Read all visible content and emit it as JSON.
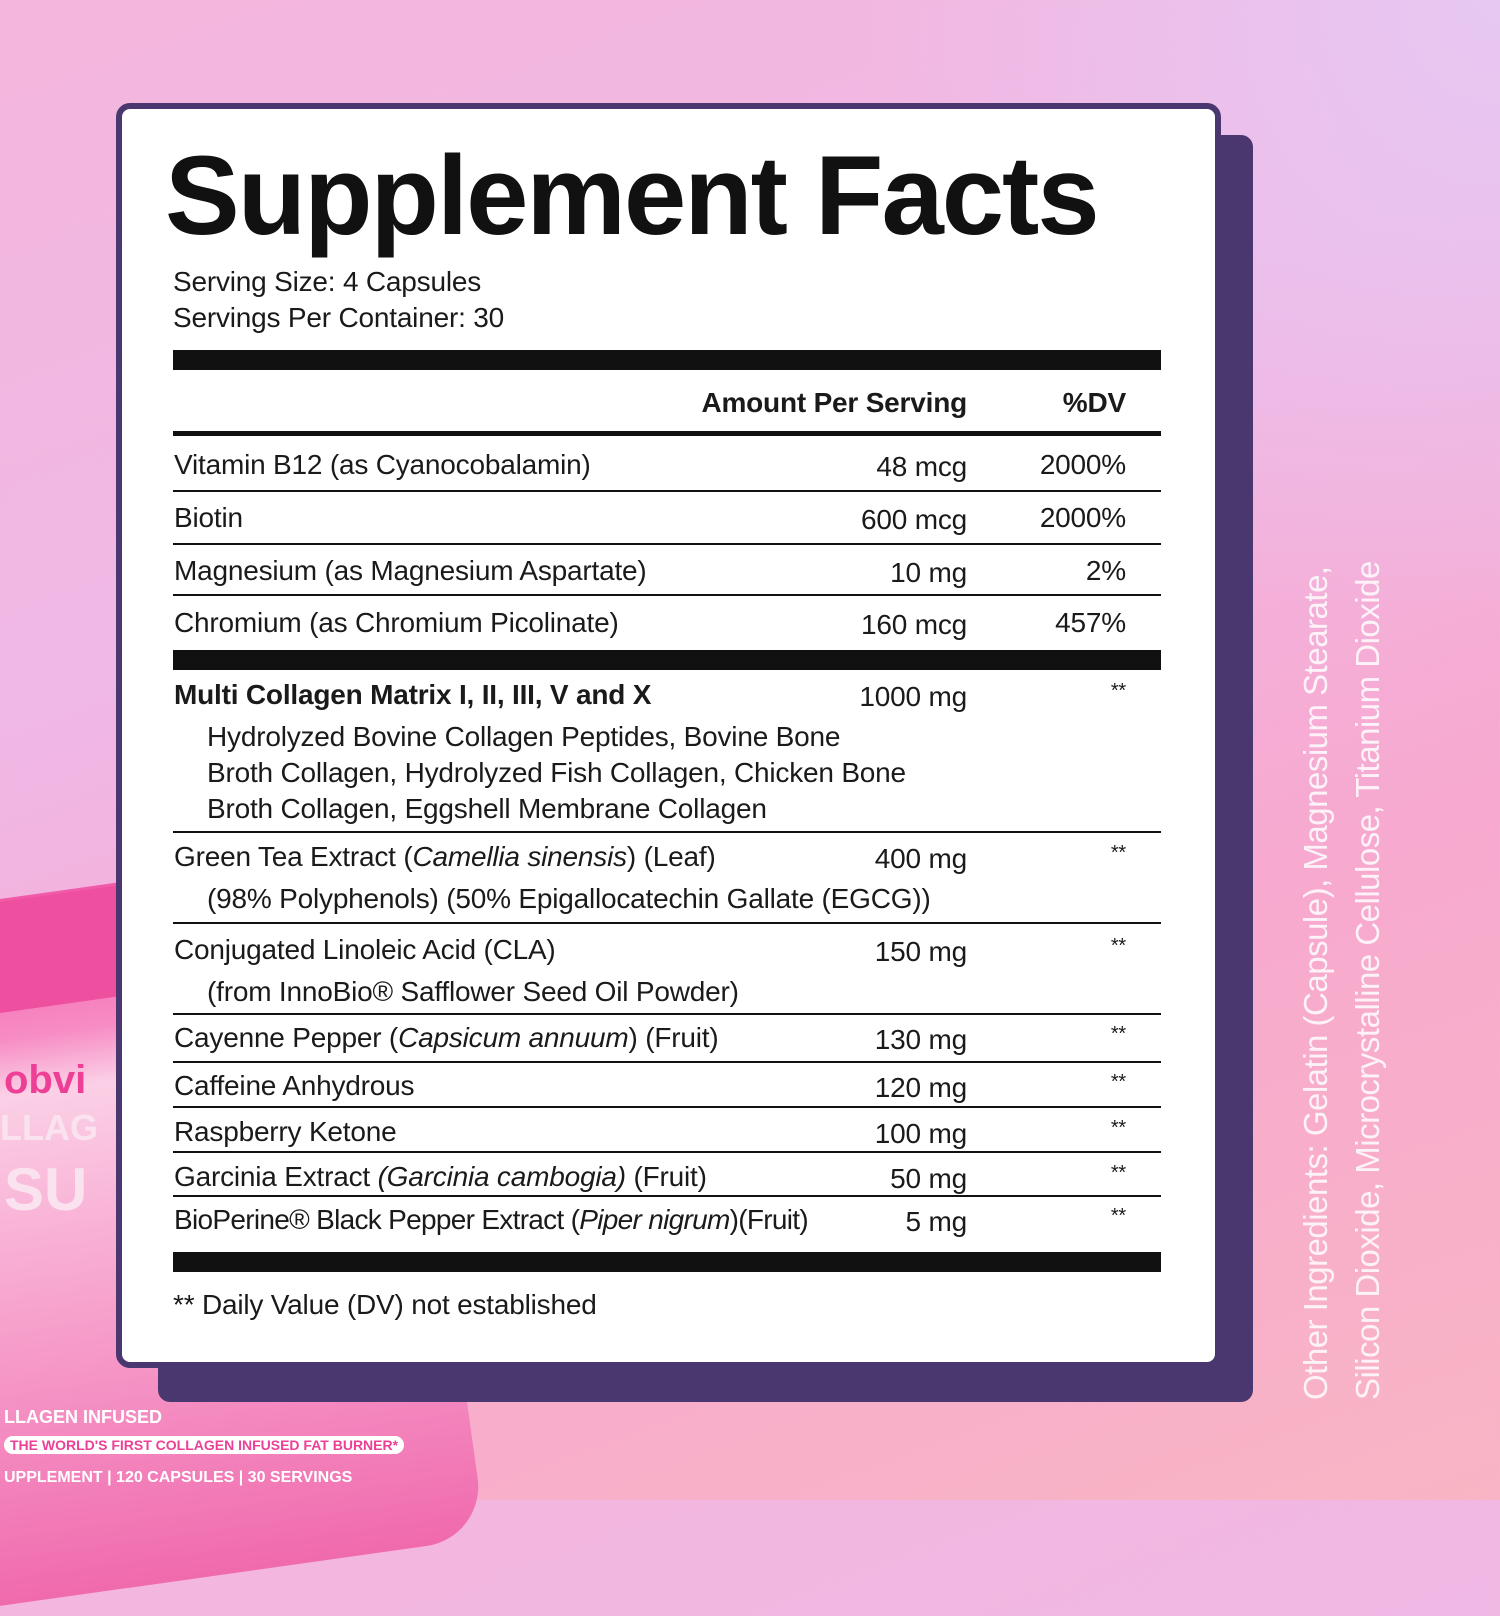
{
  "colors": {
    "frame": "#4b376f",
    "accent_pink": "#ec3f95"
  },
  "product_jar": {
    "brand": "obvi",
    "word1": "LLAG",
    "word2": "SU",
    "line": "LLAGEN INFUSED",
    "badge": "THE WORLD'S FIRST COLLAGEN INFUSED FAT BURNER*",
    "band": "UPPLEMENT | 120 CAPSULES | 30 SERVINGS"
  },
  "title": "Supplement Facts",
  "serving_size": "Serving Size: 4 Capsules",
  "servings_per_container": "Servings Per Container: 30",
  "header": {
    "amount": "Amount Per Serving",
    "dv": "%DV"
  },
  "rows": [
    {
      "name": [
        {
          "t": "Vitamin B12 (as Cyanocobalamin)"
        }
      ],
      "amount": "48 mcg",
      "dv": "2000%"
    },
    {
      "name": [
        {
          "t": "Biotin"
        }
      ],
      "amount": "600 mcg",
      "dv": "2000%"
    },
    {
      "name": [
        {
          "t": "Magnesium (as Magnesium Aspartate)"
        }
      ],
      "amount": "10 mg",
      "dv": "2%"
    },
    {
      "name": [
        {
          "t": "Chromium (as Chromium Picolinate)"
        }
      ],
      "amount": "160 mcg",
      "dv": "457%"
    },
    {
      "name": [
        {
          "t": "Multi Collagen Matrix I, II, III, V and X"
        }
      ],
      "bold": true,
      "amount": "1000 mg",
      "dv": "**",
      "sub": [
        "Hydrolyzed Bovine Collagen Peptides, Bovine Bone",
        "Broth Collagen, Hydrolyzed Fish Collagen, Chicken Bone",
        "Broth Collagen, Eggshell Membrane Collagen"
      ]
    },
    {
      "name": [
        {
          "t": "Green Tea Extract ("
        },
        {
          "t": "Camellia sinensis",
          "i": true
        },
        {
          "t": ") (Leaf)"
        }
      ],
      "amount": "400 mg",
      "dv": "**",
      "sub": [
        "(98% Polyphenols) (50% Epigallocatechin Gallate (EGCG))"
      ]
    },
    {
      "name": [
        {
          "t": "Conjugated Linoleic Acid (CLA)"
        }
      ],
      "amount": "150 mg",
      "dv": "**",
      "sub": [
        "(from InnoBio® Safflower Seed Oil Powder)"
      ]
    },
    {
      "name": [
        {
          "t": "Cayenne Pepper ("
        },
        {
          "t": "Capsicum annuum",
          "i": true
        },
        {
          "t": ") (Fruit)"
        }
      ],
      "amount": "130 mg",
      "dv": "**"
    },
    {
      "name": [
        {
          "t": "Caffeine Anhydrous"
        }
      ],
      "amount": "120 mg",
      "dv": "**"
    },
    {
      "name": [
        {
          "t": "Raspberry Ketone"
        }
      ],
      "amount": "100 mg",
      "dv": "**"
    },
    {
      "name": [
        {
          "t": "Garcinia Extract "
        },
        {
          "t": "(Garcinia cambogia)",
          "i": true
        },
        {
          "t": " (Fruit)"
        }
      ],
      "amount": "50 mg",
      "dv": "**"
    },
    {
      "name": [
        {
          "t": "BioPerine® Black Pepper Extract ("
        },
        {
          "t": "Piper nigrum",
          "i": true
        },
        {
          "t": ")(Fruit)"
        }
      ],
      "amount": "5 mg",
      "dv": "**"
    }
  ],
  "footnote": "** Daily Value (DV) not established",
  "other_ingredients": {
    "line1": "Other Ingredients: Gelatin (Capsule), Magnesium Stearate,",
    "line2": "Silicon Dioxide, Microcrystalline Cellulose, Titanium Dioxide"
  }
}
